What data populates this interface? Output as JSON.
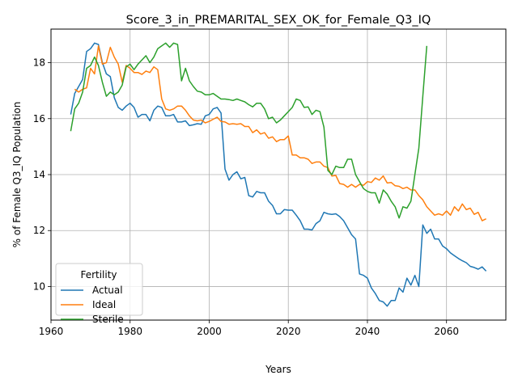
{
  "chart_data": {
    "type": "line",
    "title": "Score_3_in_PREMARITAL_SEX_OK_for_Female_Q3_IQ",
    "xlabel": "Years",
    "ylabel": "% of Female Q3_IQ Population",
    "xlim": [
      1960,
      2075
    ],
    "ylim": [
      8.8,
      19.2
    ],
    "xticks": [
      1960,
      1980,
      2000,
      2020,
      2040,
      2060
    ],
    "yticks": [
      10,
      12,
      14,
      16,
      18
    ],
    "grid": true,
    "legend": {
      "title": "Fertility",
      "placement": "lower-left"
    },
    "series": [
      {
        "name": "Actual",
        "color": "#1f77b4",
        "x": [
          1965,
          1966,
          1967,
          1968,
          1969,
          1970,
          1971,
          1972,
          1973,
          1974,
          1975,
          1976,
          1977,
          1978,
          1979,
          1980,
          1981,
          1982,
          1983,
          1984,
          1985,
          1986,
          1987,
          1988,
          1989,
          1990,
          1991,
          1992,
          1993,
          1994,
          1995,
          1996,
          1997,
          1998,
          1999,
          2000,
          2001,
          2002,
          2003,
          2004,
          2005,
          2006,
          2007,
          2008,
          2009,
          2010,
          2011,
          2012,
          2013,
          2014,
          2015,
          2016,
          2017,
          2018,
          2019,
          2020,
          2021,
          2022,
          2023,
          2024,
          2025,
          2026,
          2027,
          2028,
          2029,
          2030,
          2031,
          2032,
          2033,
          2034,
          2035,
          2036,
          2037,
          2038,
          2039,
          2040,
          2041,
          2042,
          2043,
          2044,
          2045,
          2046,
          2047,
          2048,
          2049,
          2050,
          2051,
          2052,
          2053,
          2054,
          2055,
          2056,
          2057,
          2058,
          2059,
          2060,
          2061,
          2062,
          2063,
          2064,
          2065,
          2066,
          2067,
          2068,
          2069,
          2070
        ],
        "y": [
          16.15,
          16.9,
          17.15,
          17.4,
          18.4,
          18.5,
          18.7,
          18.65,
          18.0,
          17.6,
          17.5,
          16.75,
          16.4,
          16.3,
          16.45,
          16.55,
          16.4,
          16.05,
          16.15,
          16.15,
          15.92,
          16.3,
          16.45,
          16.4,
          16.1,
          16.1,
          16.15,
          15.88,
          15.88,
          15.92,
          15.75,
          15.78,
          15.82,
          15.8,
          16.1,
          16.15,
          16.35,
          16.4,
          16.2,
          14.2,
          13.8,
          14.0,
          14.1,
          13.85,
          13.9,
          13.25,
          13.2,
          13.4,
          13.35,
          13.35,
          13.05,
          12.9,
          12.6,
          12.6,
          12.75,
          12.73,
          12.73,
          12.55,
          12.35,
          12.05,
          12.05,
          12.02,
          12.25,
          12.35,
          12.65,
          12.6,
          12.58,
          12.6,
          12.5,
          12.35,
          12.1,
          11.85,
          11.7,
          10.45,
          10.4,
          10.3,
          9.95,
          9.75,
          9.5,
          9.45,
          9.3,
          9.5,
          9.5,
          9.95,
          9.8,
          10.3,
          10.05,
          10.4,
          10.0,
          12.2,
          11.9,
          12.05,
          11.7,
          11.7,
          11.45,
          11.35,
          11.2,
          11.1,
          11.0,
          10.92,
          10.85,
          10.72,
          10.68,
          10.62,
          10.7,
          10.55
        ]
      },
      {
        "name": "Ideal",
        "color": "#ff7f0e",
        "x": [
          1966,
          1967,
          1968,
          1969,
          1970,
          1971,
          1972,
          1973,
          1974,
          1975,
          1976,
          1977,
          1978,
          1979,
          1980,
          1981,
          1982,
          1983,
          1984,
          1985,
          1986,
          1987,
          1988,
          1989,
          1990,
          1991,
          1992,
          1993,
          1994,
          1995,
          1996,
          1997,
          1998,
          1999,
          2000,
          2001,
          2002,
          2003,
          2004,
          2005,
          2006,
          2007,
          2008,
          2009,
          2010,
          2011,
          2012,
          2013,
          2014,
          2015,
          2016,
          2017,
          2018,
          2019,
          2020,
          2021,
          2022,
          2023,
          2024,
          2025,
          2026,
          2027,
          2028,
          2029,
          2030,
          2031,
          2032,
          2033,
          2034,
          2035,
          2036,
          2037,
          2038,
          2039,
          2040,
          2041,
          2042,
          2043,
          2044,
          2045,
          2046,
          2047,
          2048,
          2049,
          2050,
          2051,
          2052,
          2053,
          2054,
          2055,
          2056,
          2057,
          2058,
          2059,
          2060,
          2061,
          2062,
          2063,
          2064,
          2065,
          2066,
          2067,
          2068,
          2069,
          2070
        ],
        "y": [
          17.05,
          16.95,
          17.05,
          17.1,
          17.8,
          17.6,
          18.6,
          17.95,
          18.0,
          18.55,
          18.2,
          17.95,
          17.3,
          17.9,
          17.8,
          17.65,
          17.65,
          17.58,
          17.7,
          17.65,
          17.85,
          17.75,
          16.7,
          16.35,
          16.3,
          16.35,
          16.45,
          16.45,
          16.3,
          16.1,
          15.95,
          15.92,
          15.95,
          15.85,
          15.9,
          15.98,
          16.05,
          15.9,
          15.88,
          15.8,
          15.82,
          15.8,
          15.82,
          15.72,
          15.72,
          15.5,
          15.6,
          15.45,
          15.5,
          15.3,
          15.35,
          15.18,
          15.25,
          15.25,
          15.38,
          14.7,
          14.7,
          14.6,
          14.6,
          14.55,
          14.4,
          14.45,
          14.45,
          14.3,
          14.25,
          13.95,
          13.97,
          13.68,
          13.65,
          13.55,
          13.65,
          13.55,
          13.65,
          13.62,
          13.75,
          13.72,
          13.88,
          13.8,
          13.95,
          13.7,
          13.72,
          13.6,
          13.58,
          13.5,
          13.55,
          13.45,
          13.45,
          13.25,
          13.1,
          12.85,
          12.7,
          12.55,
          12.6,
          12.55,
          12.7,
          12.55,
          12.85,
          12.7,
          12.95,
          12.75,
          12.8,
          12.58,
          12.65,
          12.35,
          12.42
        ]
      },
      {
        "name": "Sterile",
        "color": "#2ca02c",
        "x": [
          1965,
          1966,
          1967,
          1968,
          1969,
          1970,
          1971,
          1972,
          1973,
          1974,
          1975,
          1976,
          1977,
          1978,
          1979,
          1980,
          1981,
          1982,
          1983,
          1984,
          1985,
          1986,
          1987,
          1988,
          1989,
          1990,
          1991,
          1992,
          1993,
          1994,
          1995,
          1996,
          1997,
          1998,
          1999,
          2000,
          2001,
          2002,
          2003,
          2004,
          2005,
          2006,
          2007,
          2008,
          2009,
          2010,
          2011,
          2012,
          2013,
          2014,
          2015,
          2016,
          2017,
          2018,
          2019,
          2020,
          2021,
          2022,
          2023,
          2024,
          2025,
          2026,
          2027,
          2028,
          2029,
          2030,
          2031,
          2032,
          2033,
          2034,
          2035,
          2036,
          2037,
          2038,
          2039,
          2040,
          2041,
          2042,
          2043,
          2044,
          2045,
          2046,
          2047,
          2048,
          2049,
          2050,
          2051,
          2052,
          2053,
          2054,
          2055
        ],
        "y": [
          15.55,
          16.35,
          16.55,
          16.95,
          17.8,
          17.9,
          18.2,
          17.9,
          17.3,
          16.8,
          16.95,
          16.85,
          16.95,
          17.2,
          17.85,
          17.95,
          17.75,
          17.95,
          18.1,
          18.25,
          18.0,
          18.2,
          18.5,
          18.6,
          18.7,
          18.55,
          18.7,
          18.65,
          17.35,
          17.8,
          17.35,
          17.15,
          16.98,
          16.95,
          16.85,
          16.85,
          16.9,
          16.8,
          16.7,
          16.7,
          16.68,
          16.65,
          16.7,
          16.65,
          16.6,
          16.5,
          16.42,
          16.55,
          16.55,
          16.35,
          16.0,
          16.05,
          15.85,
          15.95,
          16.1,
          16.25,
          16.4,
          16.7,
          16.65,
          16.4,
          16.42,
          16.15,
          16.3,
          16.25,
          15.7,
          14.15,
          14.0,
          14.3,
          14.25,
          14.25,
          14.55,
          14.55,
          14.0,
          13.75,
          13.5,
          13.4,
          13.35,
          13.35,
          12.98,
          13.45,
          13.3,
          13.05,
          12.85,
          12.45,
          12.85,
          12.8,
          13.05,
          14.0,
          14.95,
          16.8,
          18.6
        ]
      }
    ]
  }
}
